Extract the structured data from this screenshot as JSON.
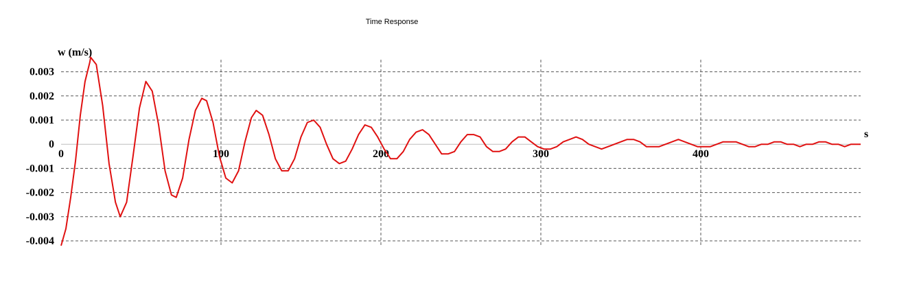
{
  "chart_data": {
    "type": "line",
    "title": "Time Response",
    "ylabel": "w (m/s)",
    "xlabel": "s",
    "xlim": [
      0,
      500
    ],
    "ylim": [
      -0.004,
      0.0035
    ],
    "x_ticks": [
      0,
      100,
      200,
      300,
      400
    ],
    "x_tick_labels": [
      "0",
      "100",
      "200",
      "300",
      "400"
    ],
    "y_ticks": [
      0.003,
      0.002,
      0.001,
      0,
      -0.001,
      -0.002,
      -0.003,
      -0.004
    ],
    "y_tick_labels": [
      "0.003",
      "0.002",
      "0.001",
      "0",
      "-0.001",
      "-0.002",
      "-0.003",
      "-0.004"
    ],
    "grid": true,
    "series_color": "#e01010",
    "series": [
      {
        "points": [
          [
            0,
            -0.0042
          ],
          [
            3,
            -0.0035
          ],
          [
            6,
            -0.0022
          ],
          [
            9,
            -0.0007
          ],
          [
            12,
            0.0012
          ],
          [
            15,
            0.0026
          ],
          [
            18,
            0.0034
          ],
          [
            18.5,
            0.0036
          ],
          [
            22,
            0.0033
          ],
          [
            26,
            0.0016
          ],
          [
            30,
            -0.0008
          ],
          [
            34,
            -0.0024
          ],
          [
            37,
            -0.003
          ],
          [
            41,
            -0.0024
          ],
          [
            45,
            -0.0005
          ],
          [
            49,
            0.0015
          ],
          [
            53,
            0.0026
          ],
          [
            57,
            0.0022
          ],
          [
            61,
            0.0008
          ],
          [
            65,
            -0.0011
          ],
          [
            69,
            -0.0021
          ],
          [
            72,
            -0.0022
          ],
          [
            76,
            -0.0014
          ],
          [
            80,
            0.0002
          ],
          [
            84,
            0.0014
          ],
          [
            88,
            0.0019
          ],
          [
            91,
            0.0018
          ],
          [
            95,
            0.0009
          ],
          [
            99,
            -0.0005
          ],
          [
            103,
            -0.0014
          ],
          [
            107,
            -0.0016
          ],
          [
            111,
            -0.0011
          ],
          [
            115,
            0.0001
          ],
          [
            119,
            0.0011
          ],
          [
            122,
            0.0014
          ],
          [
            126,
            0.0012
          ],
          [
            130,
            0.0004
          ],
          [
            134,
            -0.0006
          ],
          [
            138,
            -0.0011
          ],
          [
            142,
            -0.0011
          ],
          [
            146,
            -0.0006
          ],
          [
            150,
            0.0003
          ],
          [
            154,
            0.0009
          ],
          [
            158,
            0.001
          ],
          [
            162,
            0.0007
          ],
          [
            166,
            0.0
          ],
          [
            170,
            -0.0006
          ],
          [
            174,
            -0.0008
          ],
          [
            178,
            -0.0007
          ],
          [
            182,
            -0.0002
          ],
          [
            186,
            0.0004
          ],
          [
            190,
            0.0008
          ],
          [
            194,
            0.0007
          ],
          [
            198,
            0.0003
          ],
          [
            202,
            -0.0002
          ],
          [
            206,
            -0.0006
          ],
          [
            210,
            -0.0006
          ],
          [
            214,
            -0.0003
          ],
          [
            218,
            0.0002
          ],
          [
            222,
            0.0005
          ],
          [
            226,
            0.0006
          ],
          [
            230,
            0.0004
          ],
          [
            234,
            0.0
          ],
          [
            238,
            -0.0004
          ],
          [
            242,
            -0.0004
          ],
          [
            246,
            -0.0003
          ],
          [
            250,
            0.0001
          ],
          [
            254,
            0.0004
          ],
          [
            258,
            0.0004
          ],
          [
            262,
            0.0003
          ],
          [
            266,
            -0.0001
          ],
          [
            270,
            -0.0003
          ],
          [
            274,
            -0.0003
          ],
          [
            278,
            -0.0002
          ],
          [
            282,
            0.0001
          ],
          [
            286,
            0.0003
          ],
          [
            290,
            0.0003
          ],
          [
            294,
            0.0001
          ],
          [
            298,
            -0.0001
          ],
          [
            302,
            -0.0002
          ],
          [
            306,
            -0.0002
          ],
          [
            310,
            -0.0001
          ],
          [
            314,
            0.0001
          ],
          [
            318,
            0.0002
          ],
          [
            322,
            0.0003
          ],
          [
            326,
            0.0002
          ],
          [
            330,
            0.0
          ],
          [
            334,
            -0.0001
          ],
          [
            338,
            -0.0002
          ],
          [
            342,
            -0.0001
          ],
          [
            346,
            0.0
          ],
          [
            350,
            0.0001
          ],
          [
            354,
            0.0002
          ],
          [
            358,
            0.0002
          ],
          [
            362,
            0.0001
          ],
          [
            366,
            -0.0001
          ],
          [
            370,
            -0.0001
          ],
          [
            374,
            -0.0001
          ],
          [
            378,
            0.0
          ],
          [
            382,
            0.0001
          ],
          [
            386,
            0.0002
          ],
          [
            390,
            0.0001
          ],
          [
            394,
            0.0
          ],
          [
            398,
            -0.0001
          ],
          [
            402,
            -0.0001
          ],
          [
            406,
            -0.0001
          ],
          [
            410,
            0.0
          ],
          [
            414,
            0.0001
          ],
          [
            418,
            0.0001
          ],
          [
            422,
            0.0001
          ],
          [
            426,
            0.0
          ],
          [
            430,
            -0.0001
          ],
          [
            434,
            -0.0001
          ],
          [
            438,
            0.0
          ],
          [
            442,
            0.0
          ],
          [
            446,
            0.0001
          ],
          [
            450,
            0.0001
          ],
          [
            454,
            0.0
          ],
          [
            458,
            0.0
          ],
          [
            462,
            -0.0001
          ],
          [
            466,
            0.0
          ],
          [
            470,
            0.0
          ],
          [
            474,
            0.0001
          ],
          [
            478,
            0.0001
          ],
          [
            482,
            0.0
          ],
          [
            486,
            0.0
          ],
          [
            490,
            -0.0001
          ],
          [
            494,
            0.0
          ],
          [
            498,
            0.0
          ],
          [
            500,
            0.0
          ]
        ]
      }
    ]
  }
}
